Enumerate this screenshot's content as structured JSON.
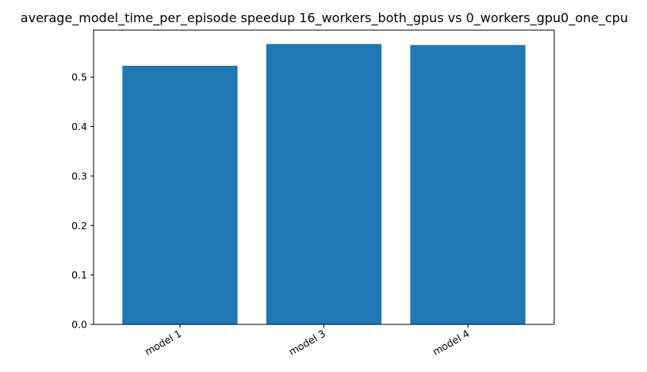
{
  "chart_data": {
    "type": "bar",
    "title": "average_model_time_per_episode speedup 16_workers_both_gpus vs 0_workers_gpu0_one_cpu",
    "categories": [
      "model 1",
      "model 3",
      "model 4"
    ],
    "values": [
      0.523,
      0.567,
      0.565
    ],
    "xlabel": "",
    "ylabel": "",
    "ylim": [
      0,
      0.595
    ],
    "yticks": [
      0.0,
      0.1,
      0.2,
      0.3,
      0.4,
      0.5
    ],
    "ytick_labels": [
      "0.0",
      "0.1",
      "0.2",
      "0.3",
      "0.4",
      "0.5"
    ],
    "bar_color": "#1f77b4",
    "grid": false,
    "legend": "none"
  }
}
